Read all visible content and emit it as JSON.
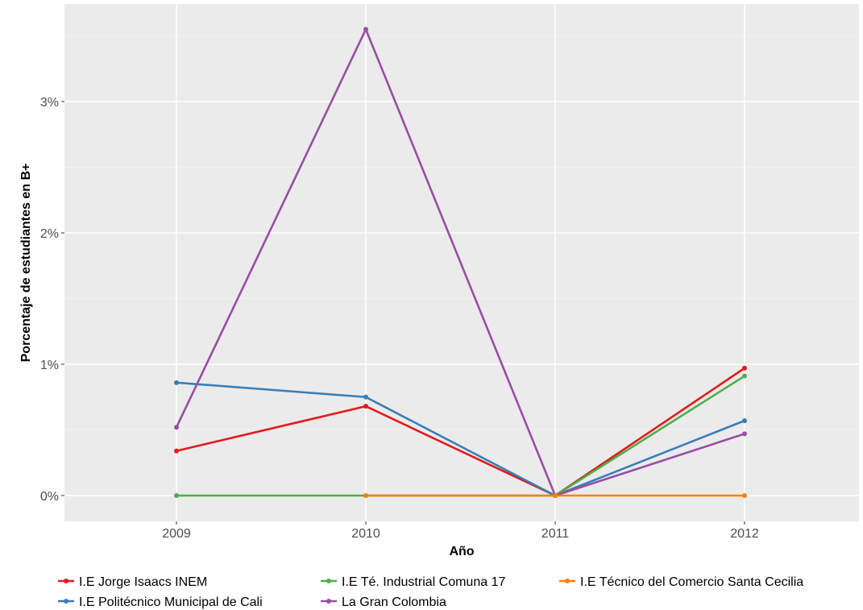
{
  "chart_data": {
    "type": "line",
    "title": "",
    "xlabel": "Año",
    "ylabel": "Porcentaje de estudiantes en B+",
    "categories": [
      "2009",
      "2010",
      "2011",
      "2012"
    ],
    "ylim": [
      -0.0015,
      0.0365
    ],
    "yticks": [
      0,
      0.01,
      0.02,
      0.03
    ],
    "ytick_labels": [
      "0%",
      "1%",
      "2%",
      "3%"
    ],
    "grid": true,
    "legend_position": "bottom",
    "series": [
      {
        "name": "I.E Jorge Isaacs INEM",
        "color": "#e41a1c",
        "values": [
          0.0034,
          0.0068,
          0.0,
          0.0097
        ]
      },
      {
        "name": "I.E Politécnico Municipal de Cali",
        "color": "#377eb8",
        "values": [
          0.0086,
          0.0075,
          0.0,
          0.0057
        ]
      },
      {
        "name": "I.E Té. Industrial Comuna 17",
        "color": "#4daf4a",
        "values": [
          0.0,
          0.0,
          0.0,
          0.0091
        ]
      },
      {
        "name": "La Gran Colombia",
        "color": "#984ea3",
        "values": [
          0.0052,
          0.0355,
          0.0,
          0.0047
        ]
      },
      {
        "name": "I.E Técnico del Comercio Santa Cecilia",
        "color": "#ff7f00",
        "values": [
          null,
          0.0,
          0.0,
          0.0
        ]
      }
    ]
  }
}
